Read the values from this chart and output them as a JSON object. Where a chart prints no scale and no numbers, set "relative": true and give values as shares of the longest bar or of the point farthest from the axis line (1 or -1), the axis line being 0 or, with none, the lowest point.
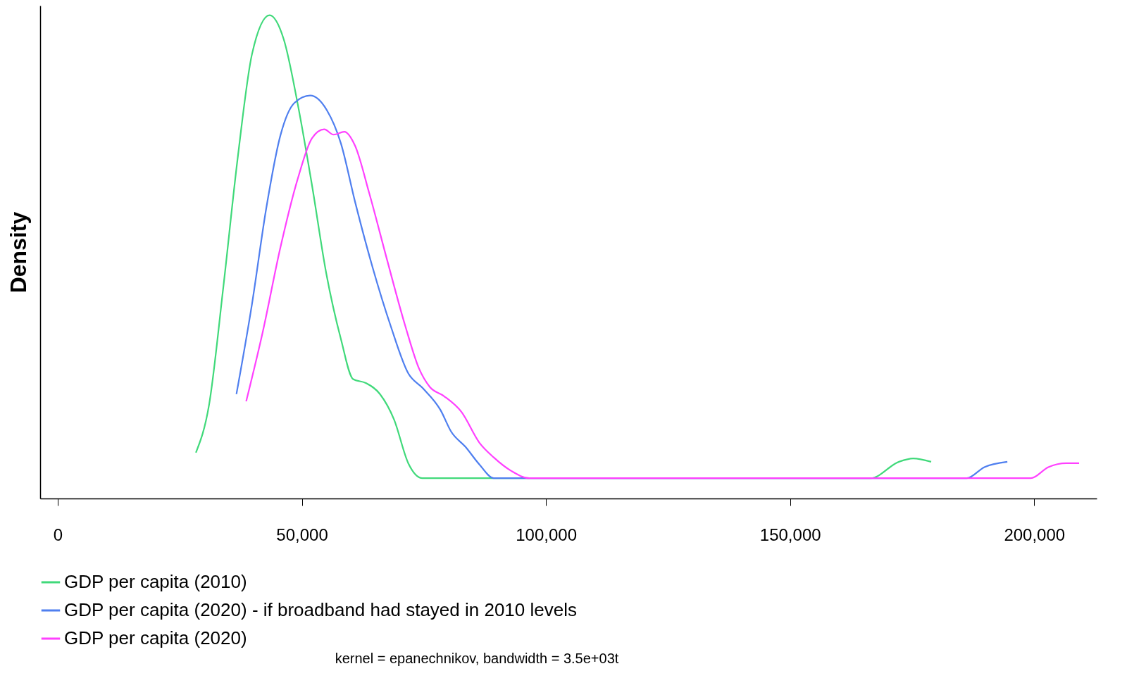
{
  "chart_data": {
    "type": "line",
    "relative": true,
    "ylabel": "Density",
    "xlim": [
      -3600,
      212800
    ],
    "xticks": [
      {
        "value": 0,
        "label": "0"
      },
      {
        "value": 50000,
        "label": "50,000"
      },
      {
        "value": 100000,
        "label": "100,000"
      },
      {
        "value": 150000,
        "label": "150,000"
      },
      {
        "value": 200000,
        "label": "200,000"
      }
    ],
    "legend": "bottom",
    "grid": false,
    "marker": "none",
    "line_style": "solid",
    "annotations": [
      "kernel = epanechnikov, bandwidth = 3.5e+03t"
    ],
    "series": [
      {
        "name": "GDP per capita (2010)",
        "color": "#40d97a",
        "x": [
          28300,
          31000,
          33900,
          36900,
          39800,
          43400,
          46300,
          49200,
          52100,
          55000,
          58000,
          60500,
          63100,
          66000,
          68900,
          71800,
          74700,
          166500,
          172300,
          175200,
          178900
        ],
        "values": [
          0.095,
          0.194,
          0.436,
          0.708,
          0.92,
          1,
          0.95,
          0.814,
          0.647,
          0.466,
          0.33,
          0.247,
          0.239,
          0.216,
          0.163,
          0.073,
          0.042,
          0.042,
          0.076,
          0.083,
          0.076
        ]
      },
      {
        "name": "GDP per capita (2020) - if broadband had stayed in 2010 levels",
        "color": "#4f7fef",
        "x": [
          36600,
          39800,
          42700,
          45600,
          48500,
          51700,
          55100,
          58000,
          60900,
          64500,
          68200,
          71800,
          74700,
          78400,
          80600,
          83500,
          86400,
          89300,
          186200,
          189800,
          194500
        ],
        "values": [
          0.216,
          0.403,
          0.6,
          0.751,
          0.819,
          0.834,
          0.804,
          0.735,
          0.614,
          0.478,
          0.357,
          0.259,
          0.229,
          0.183,
          0.138,
          0.107,
          0.07,
          0.042,
          0.042,
          0.065,
          0.076
        ]
      },
      {
        "name": "GDP per capita (2020)",
        "color": "#ff40ff",
        "x": [
          38600,
          42000,
          45600,
          49200,
          52100,
          54600,
          56500,
          58700,
          60900,
          63800,
          67400,
          71100,
          74000,
          76200,
          79100,
          82700,
          86400,
          89300,
          92900,
          96600,
          199300,
          202900,
          206600,
          209200
        ],
        "values": [
          0.201,
          0.345,
          0.519,
          0.663,
          0.746,
          0.764,
          0.753,
          0.759,
          0.73,
          0.632,
          0.496,
          0.36,
          0.269,
          0.231,
          0.212,
          0.179,
          0.115,
          0.085,
          0.057,
          0.042,
          0.042,
          0.065,
          0.073,
          0.073
        ]
      }
    ]
  }
}
